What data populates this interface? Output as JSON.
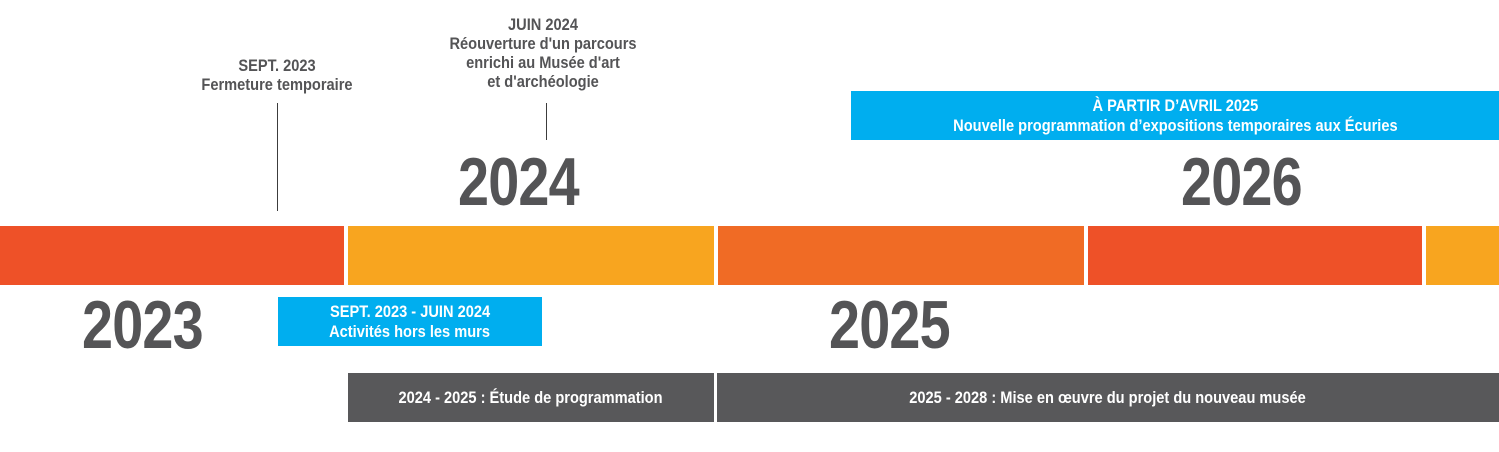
{
  "colors": {
    "red": "#ee5128",
    "yellow": "#f8a51f",
    "orange": "#f06b25",
    "blue": "#00aeef",
    "grey": "#58585a",
    "text": "#545456"
  },
  "years": {
    "y2023": "2023",
    "y2024": "2024",
    "y2025": "2025",
    "y2026": "2026"
  },
  "events": {
    "sept2023": {
      "date": "SEPT. 2023",
      "text": "Fermeture temporaire"
    },
    "juin2024": {
      "date": "JUIN 2024",
      "line1": "Réouverture d'un parcours",
      "line2": "enrichi au Musée d'art",
      "line3": "et d'archéologie"
    }
  },
  "periods": {
    "avril2025": {
      "line1": "À PARTIR D’AVRIL 2025",
      "line2": "Nouvelle programmation d’expositions temporaires aux Écuries"
    },
    "horsMurs": {
      "line1": "SEPT. 2023 - JUIN 2024",
      "line2": "Activités hors les murs"
    },
    "etude": {
      "label": "2024 - 2025 : Étude de programmation"
    },
    "projet": {
      "label": "2025 - 2028 : Mise en œuvre du projet du nouveau musée"
    }
  }
}
